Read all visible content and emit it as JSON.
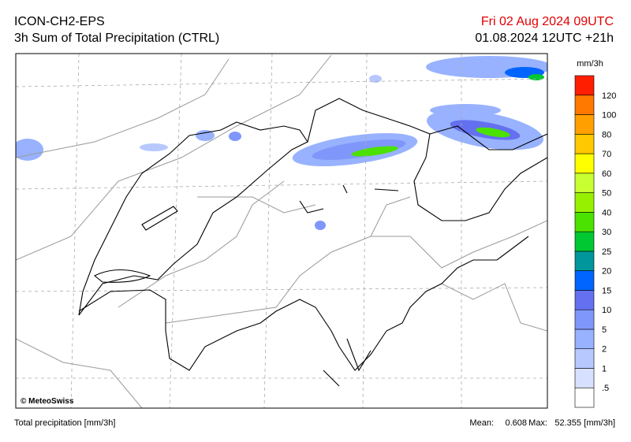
{
  "header": {
    "model": "ICON-CH2-EPS",
    "product": "3h Sum of Total Precipitation (CTRL)",
    "valid": "Fri 02 Aug 2024 09UTC",
    "run": "01.08.2024 12UTC +21h"
  },
  "map": {
    "credit": "© MeteoSwiss"
  },
  "colorbar": {
    "unit": "mm/3h",
    "levels": [
      {
        "value": 0.5,
        "label": ".5"
      },
      1,
      2,
      5,
      10,
      15,
      20,
      25,
      30,
      40,
      50,
      60,
      70,
      80,
      100,
      120
    ],
    "colors": [
      "#ffffff",
      "#d7e1ff",
      "#b7c8ff",
      "#98b2ff",
      "#7f97fa",
      "#6470f0",
      "#0064ff",
      "#00969b",
      "#00c832",
      "#4be100",
      "#96f000",
      "#c8ff32",
      "#ffff00",
      "#ffc800",
      "#ffa000",
      "#ff7800",
      "#ff1e00"
    ]
  },
  "footer": {
    "description": "Total precipitation [mm/3h]",
    "mean_label": "Mean:",
    "mean": 0.608,
    "max_label": "Max:",
    "max": 52.355,
    "unit": "[mm/3h]"
  }
}
